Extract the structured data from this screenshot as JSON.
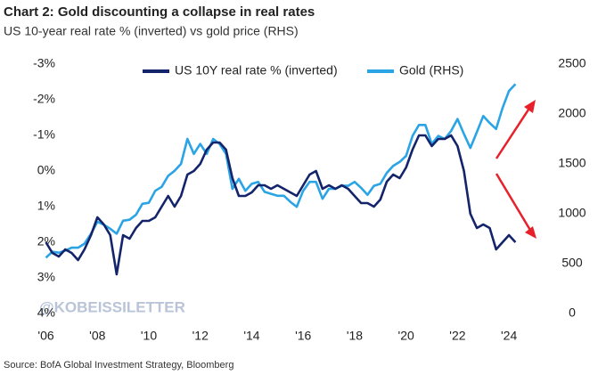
{
  "chart_data": {
    "type": "line",
    "title": "Chart 2: Gold discounting a collapse in real rates",
    "subtitle": "US 10-year real rate % (inverted) vs gold price (RHS)",
    "source": "Source: BofA Global Investment Strategy, Bloomberg",
    "watermark": "@KOBEISSILETTER",
    "legend": "top",
    "grid": false,
    "x": [
      2006,
      2006.25,
      2006.5,
      2006.75,
      2007,
      2007.25,
      2007.5,
      2007.75,
      2008,
      2008.25,
      2008.5,
      2008.75,
      2009,
      2009.25,
      2009.5,
      2009.75,
      2010,
      2010.25,
      2010.5,
      2010.75,
      2011,
      2011.25,
      2011.5,
      2011.75,
      2012,
      2012.25,
      2012.5,
      2012.75,
      2013,
      2013.25,
      2013.5,
      2013.75,
      2014,
      2014.25,
      2014.5,
      2014.75,
      2015,
      2015.25,
      2015.5,
      2015.75,
      2016,
      2016.25,
      2016.5,
      2016.75,
      2017,
      2017.25,
      2017.5,
      2017.75,
      2018,
      2018.25,
      2018.5,
      2018.75,
      2019,
      2019.25,
      2019.5,
      2019.75,
      2020,
      2020.25,
      2020.5,
      2020.75,
      2021,
      2021.25,
      2021.5,
      2021.75,
      2022,
      2022.25,
      2022.5,
      2022.75,
      2023,
      2023.25,
      2023.5,
      2023.75,
      2024,
      2024.25
    ],
    "xlim": [
      2005.6,
      2025.0
    ],
    "xticks": [
      {
        "value": 2006,
        "label": "'06"
      },
      {
        "value": 2008,
        "label": "'08"
      },
      {
        "value": 2010,
        "label": "'10"
      },
      {
        "value": 2012,
        "label": "'12"
      },
      {
        "value": 2014,
        "label": "'14"
      },
      {
        "value": 2016,
        "label": "'16"
      },
      {
        "value": 2018,
        "label": "'18"
      },
      {
        "value": 2020,
        "label": "'20"
      },
      {
        "value": 2022,
        "label": "'22"
      },
      {
        "value": 2024,
        "label": "'24"
      }
    ],
    "ylim": [
      4,
      -3
    ],
    "yticks": [
      {
        "value": -3,
        "label": "-3%"
      },
      {
        "value": -2,
        "label": "-2%"
      },
      {
        "value": -1,
        "label": "-1%"
      },
      {
        "value": 0,
        "label": "0%"
      },
      {
        "value": 1,
        "label": "1%"
      },
      {
        "value": 2,
        "label": "2%"
      },
      {
        "value": 3,
        "label": "3%"
      },
      {
        "value": 4,
        "label": "4%"
      }
    ],
    "y2lim": [
      0,
      2500
    ],
    "y2ticks": [
      0,
      500,
      1000,
      1500,
      2000,
      2500
    ],
    "series": [
      {
        "name": "US 10Y real rate % (inverted)",
        "color": "#14246b",
        "values": [
          2.0,
          2.3,
          2.4,
          2.2,
          2.3,
          2.5,
          2.2,
          1.8,
          1.3,
          1.5,
          1.8,
          2.9,
          1.8,
          1.9,
          1.6,
          1.4,
          1.4,
          1.3,
          1.0,
          0.7,
          1.0,
          0.7,
          0.1,
          0.0,
          -0.2,
          -0.6,
          -0.8,
          -0.8,
          -0.6,
          0.2,
          0.7,
          0.7,
          0.6,
          0.4,
          0.4,
          0.5,
          0.4,
          0.5,
          0.6,
          0.7,
          0.4,
          0.1,
          0.0,
          0.5,
          0.4,
          0.5,
          0.4,
          0.5,
          0.7,
          0.9,
          0.9,
          1.0,
          0.8,
          0.3,
          0.1,
          0.2,
          -0.1,
          -0.6,
          -1.0,
          -1.0,
          -0.7,
          -0.9,
          -0.9,
          -1.0,
          -0.7,
          0.0,
          1.2,
          1.6,
          1.5,
          1.6,
          2.2,
          2.0,
          1.8,
          2.0
        ]
      },
      {
        "name": "Gold (RHS)",
        "color": "#2aa4e4",
        "axis": "y2",
        "values": [
          560,
          620,
          610,
          630,
          660,
          660,
          700,
          800,
          920,
          890,
          850,
          800,
          930,
          940,
          990,
          1100,
          1110,
          1230,
          1270,
          1380,
          1430,
          1500,
          1750,
          1600,
          1700,
          1600,
          1750,
          1700,
          1600,
          1250,
          1350,
          1230,
          1300,
          1320,
          1220,
          1200,
          1180,
          1180,
          1120,
          1070,
          1230,
          1320,
          1320,
          1150,
          1250,
          1250,
          1280,
          1280,
          1320,
          1260,
          1190,
          1280,
          1300,
          1410,
          1480,
          1520,
          1580,
          1780,
          1890,
          1890,
          1700,
          1780,
          1750,
          1830,
          1950,
          1800,
          1660,
          1820,
          1980,
          1910,
          1850,
          2060,
          2230,
          2300
        ]
      }
    ]
  }
}
